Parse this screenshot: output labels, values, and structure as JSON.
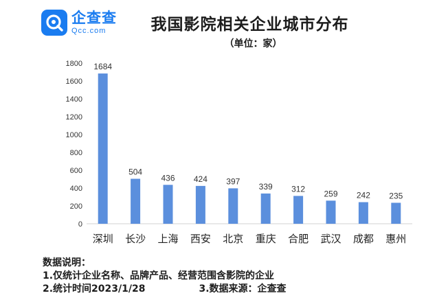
{
  "brand": {
    "name": "企查查",
    "sub": "Qcc.com",
    "icon": "qcc-logo-icon",
    "color": "#1a7cf0"
  },
  "chart_data": {
    "type": "bar",
    "title": "我国影院相关企业城市分布",
    "subtitle": "（单位：家）",
    "categories": [
      "深圳",
      "长沙",
      "上海",
      "西安",
      "北京",
      "重庆",
      "合肥",
      "武汉",
      "成都",
      "惠州"
    ],
    "values": [
      1684,
      504,
      436,
      424,
      397,
      339,
      312,
      259,
      242,
      235
    ],
    "ylim": [
      0,
      1800
    ],
    "yticks": [
      0,
      200,
      400,
      600,
      800,
      1000,
      1200,
      1400,
      1600,
      1800
    ],
    "bar_color": "#5b8fdd",
    "grid": false
  },
  "notes": {
    "heading": "数据说明：",
    "line1": "1.仅统计企业名称、品牌产品、经营范围含影院的企业",
    "line2a": "2.统计时间2023/1/28",
    "line2b": "3.数据来源：企查查"
  }
}
